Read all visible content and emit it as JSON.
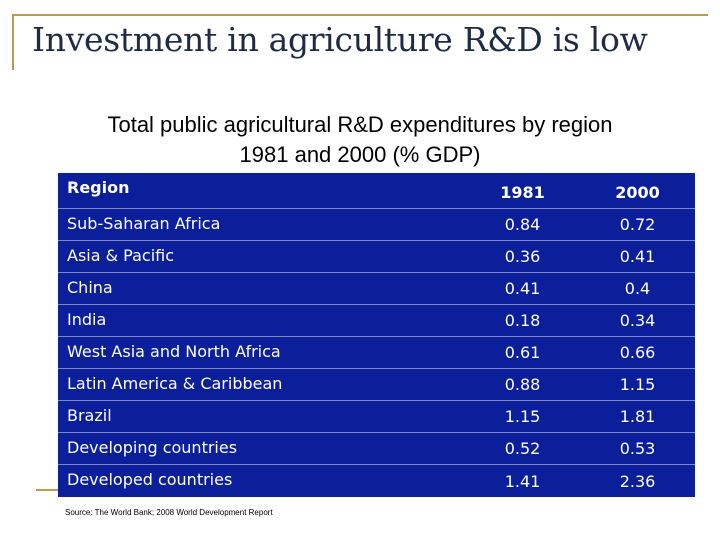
{
  "slide": {
    "title": "Investment in agriculture R&D is low",
    "subtitle_line1": "Total public agricultural R&D expenditures by region",
    "subtitle_line2": "1981 and 2000 (% GDP)",
    "source": "Source: The World Bank; 2008 World Development Report"
  },
  "table": {
    "headers": [
      "Region",
      "1981",
      "2000"
    ],
    "rows": [
      [
        "Sub-Saharan Africa",
        "0.84",
        "0.72"
      ],
      [
        "Asia & Pacific",
        "0.36",
        "0.41"
      ],
      [
        "China",
        "0.41",
        "0.4"
      ],
      [
        "India",
        "0.18",
        "0.34"
      ],
      [
        "West Asia and North Africa",
        "0.61",
        "0.66"
      ],
      [
        "Latin America & Caribbean",
        "0.88",
        "1.15"
      ],
      [
        "Brazil",
        "1.15",
        "1.81"
      ],
      [
        "Developing countries",
        "0.52",
        "0.53"
      ],
      [
        "Developed countries",
        "1.41",
        "2.36"
      ]
    ]
  },
  "colors": {
    "table_background": "#0b1f9a",
    "accent_line": "#b59e4e",
    "title_text": "#1f2a44"
  }
}
